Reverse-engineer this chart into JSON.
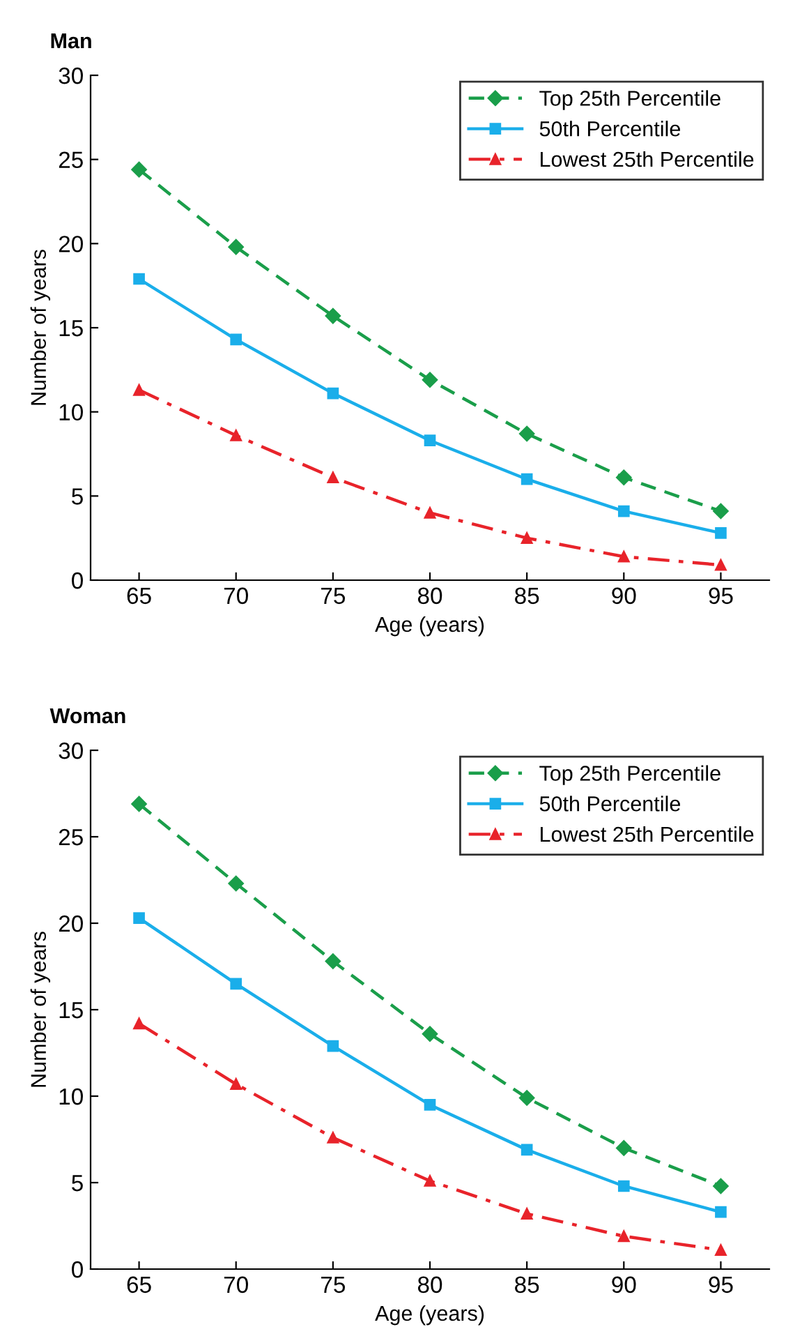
{
  "chart_data": [
    {
      "type": "line",
      "title": "Man",
      "xlabel": "Age (years)",
      "ylabel": "Number of years",
      "x": [
        65,
        70,
        75,
        80,
        85,
        90,
        95
      ],
      "xlim": [
        62.5,
        97.5
      ],
      "xticks": [
        65,
        70,
        75,
        80,
        85,
        90,
        95
      ],
      "ylim": [
        0,
        30
      ],
      "yticks": [
        0,
        5,
        10,
        15,
        20,
        25,
        30
      ],
      "grid": false,
      "legend": "top right",
      "series": [
        {
          "name": "Top 25th Percentile",
          "color": "#1a9e4a",
          "marker": "diamond",
          "line_style": "dashed",
          "values": [
            24.4,
            19.8,
            15.7,
            11.9,
            8.7,
            6.1,
            4.1
          ]
        },
        {
          "name": "50th Percentile",
          "color": "#1aaeea",
          "marker": "square",
          "line_style": "solid",
          "values": [
            17.9,
            14.3,
            11.1,
            8.3,
            6.0,
            4.1,
            2.8
          ]
        },
        {
          "name": "Lowest 25th Percentile",
          "color": "#e8232a",
          "marker": "triangle",
          "line_style": "dashdot",
          "values": [
            11.3,
            8.6,
            6.1,
            4.0,
            2.5,
            1.4,
            0.9
          ]
        }
      ]
    },
    {
      "type": "line",
      "title": "Woman",
      "xlabel": "Age (years)",
      "ylabel": "Number of years",
      "x": [
        65,
        70,
        75,
        80,
        85,
        90,
        95
      ],
      "xlim": [
        62.5,
        97.5
      ],
      "xticks": [
        65,
        70,
        75,
        80,
        85,
        90,
        95
      ],
      "ylim": [
        0,
        30
      ],
      "yticks": [
        0,
        5,
        10,
        15,
        20,
        25,
        30
      ],
      "grid": false,
      "legend": "top right",
      "series": [
        {
          "name": "Top 25th Percentile",
          "color": "#1a9e4a",
          "marker": "diamond",
          "line_style": "dashed",
          "values": [
            26.9,
            22.3,
            17.8,
            13.6,
            9.9,
            7.0,
            4.8
          ]
        },
        {
          "name": "50th Percentile",
          "color": "#1aaeea",
          "marker": "square",
          "line_style": "solid",
          "values": [
            20.3,
            16.5,
            12.9,
            9.5,
            6.9,
            4.8,
            3.3
          ]
        },
        {
          "name": "Lowest 25th Percentile",
          "color": "#e8232a",
          "marker": "triangle",
          "line_style": "dashdot",
          "values": [
            14.2,
            10.7,
            7.6,
            5.1,
            3.2,
            1.9,
            1.1
          ]
        }
      ]
    }
  ]
}
